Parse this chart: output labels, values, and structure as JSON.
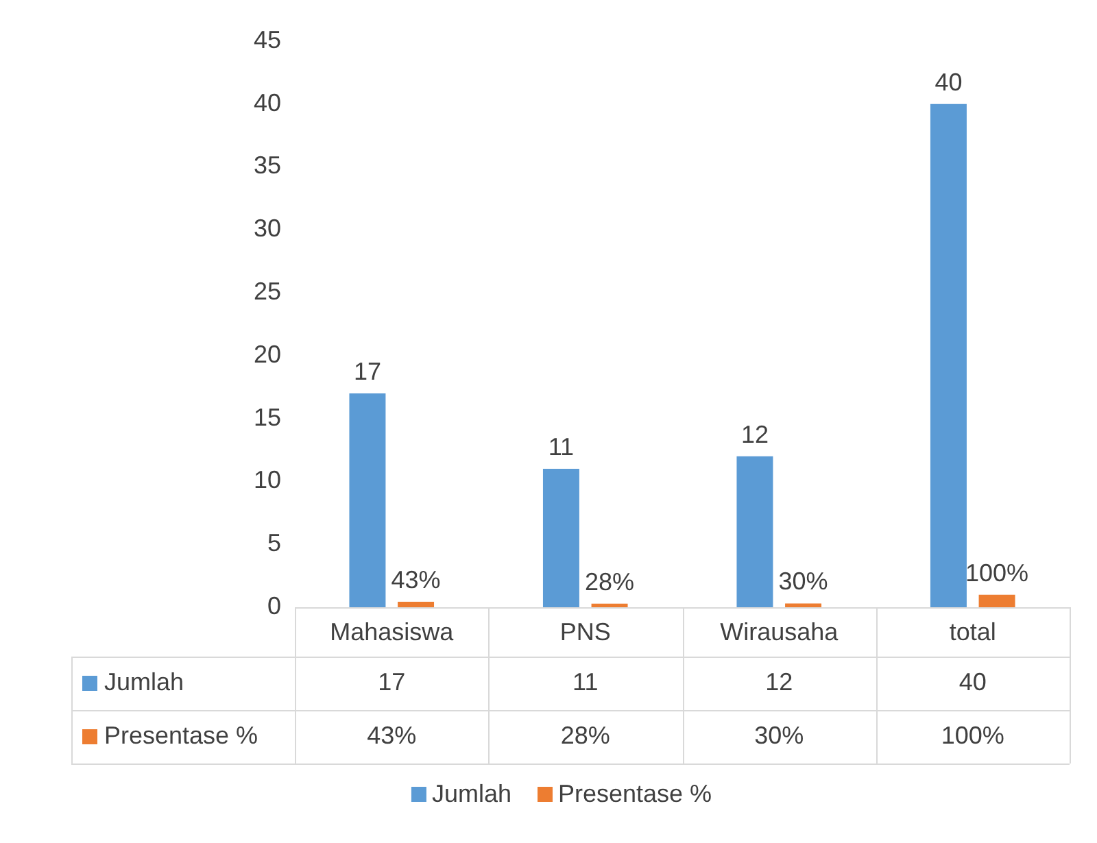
{
  "chart_data": {
    "type": "bar",
    "categories": [
      "Mahasiswa",
      "PNS",
      "Wirausaha",
      "total"
    ],
    "series": [
      {
        "name": "Jumlah",
        "color": "#5b9bd5",
        "values": [
          17,
          11,
          12,
          40
        ],
        "value_labels": [
          "17",
          "11",
          "12",
          "40"
        ]
      },
      {
        "name": "Presentase %",
        "color": "#ed7d31",
        "values": [
          0.43,
          0.28,
          0.3,
          1
        ],
        "value_labels": [
          "43%",
          "28%",
          "30%",
          "100%"
        ]
      }
    ],
    "ylim": [
      0,
      45
    ],
    "yticks": [
      0,
      5,
      10,
      15,
      20,
      25,
      30,
      35,
      40,
      45
    ],
    "grid": false,
    "legend": "bottom"
  }
}
